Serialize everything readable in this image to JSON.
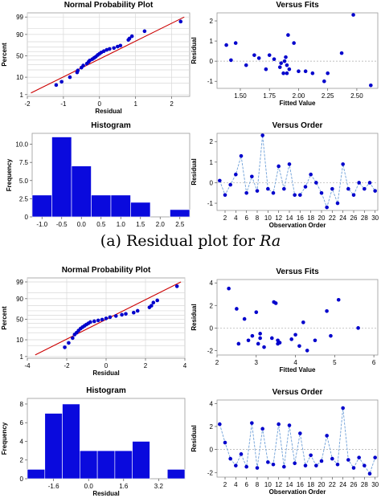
{
  "captions": {
    "ra_prefix": "(a)  Residual plot for ",
    "ra_var": "Ra"
  },
  "styles": {
    "marker": "#0000cc",
    "fit_line": "#cc0000",
    "order_line": "#6fa0d8",
    "bar_fill": "#0a0add",
    "grid": "#d9d9d9",
    "frame": "#9a9a9a",
    "bg": "#ffffff"
  },
  "chart_data": [
    {
      "id": "a-npp",
      "type": "scatter",
      "title": "Normal Probability Plot",
      "xlabel": "Residual",
      "ylabel": "Percent",
      "xlim": [
        -2,
        2.5
      ],
      "xticks": [
        -2,
        -1,
        0,
        1,
        2
      ],
      "yticks": [
        1,
        10,
        50,
        90,
        99
      ],
      "y_scale": "probability",
      "grid": true,
      "fit_line": {
        "x": [
          -1.9,
          2.35
        ],
        "y": [
          1.3,
          99
        ]
      },
      "x": [
        -1.2,
        -1.05,
        -0.82,
        -0.62,
        -0.6,
        -0.5,
        -0.45,
        -0.35,
        -0.3,
        -0.27,
        -0.2,
        -0.15,
        -0.1,
        -0.05,
        0.0,
        0.05,
        0.12,
        0.2,
        0.28,
        0.4,
        0.5,
        0.58,
        0.8,
        0.83,
        0.9,
        1.25,
        2.25
      ],
      "y": [
        4,
        6,
        10,
        16,
        19,
        24,
        28,
        32,
        36,
        39,
        42,
        45,
        48,
        52,
        55,
        58,
        61,
        64,
        66,
        68,
        71,
        73,
        83,
        85,
        88,
        93,
        98
      ]
    },
    {
      "id": "a-fits",
      "type": "scatter",
      "title": "Versus Fits",
      "xlabel": "Fitted Value",
      "ylabel": "Residual",
      "xlim": [
        1.3,
        2.68
      ],
      "ylim": [
        -1.35,
        2.4
      ],
      "xticks": [
        1.5,
        1.75,
        2.0,
        2.25,
        2.5
      ],
      "xtick_labels": [
        "1.50",
        "1.75",
        "2.00",
        "2.25",
        "2.50"
      ],
      "yticks": [
        -1,
        0,
        1,
        2
      ],
      "zero_line": true,
      "x": [
        1.38,
        1.42,
        1.46,
        1.55,
        1.62,
        1.66,
        1.72,
        1.75,
        1.79,
        1.84,
        1.85,
        1.87,
        1.88,
        1.89,
        1.9,
        1.9,
        1.91,
        1.92,
        1.96,
        2.0,
        2.06,
        2.12,
        2.22,
        2.25,
        2.37,
        2.47,
        2.62
      ],
      "y": [
        0.8,
        0.05,
        0.9,
        -0.2,
        0.3,
        0.15,
        -0.4,
        0.3,
        0.1,
        -0.3,
        -0.1,
        -0.6,
        0.0,
        0.2,
        -0.2,
        -0.6,
        1.3,
        -0.4,
        0.9,
        -0.5,
        -0.5,
        -0.6,
        -1.0,
        -0.6,
        0.4,
        2.3,
        -1.2
      ]
    },
    {
      "id": "a-hist",
      "type": "bar",
      "title": "Histogram",
      "xlabel": "",
      "ylabel": "Frequency",
      "bin_edges": [
        -1.25,
        -0.75,
        -0.25,
        0.25,
        0.75,
        1.25,
        1.75,
        2.25,
        2.75
      ],
      "values": [
        3,
        11,
        7,
        3,
        3,
        2,
        0,
        1
      ],
      "xticks": [
        -1.0,
        -0.5,
        0.0,
        0.5,
        1.0,
        1.5,
        2.0,
        2.5
      ],
      "xtick_labels": [
        "-1.0",
        "-0.5",
        "0.0",
        "0.5",
        "1.0",
        "1.5",
        "2.0",
        "2.5"
      ],
      "yticks": [
        0,
        2.5,
        5.0,
        7.5,
        10.0
      ],
      "ytick_labels": [
        "0",
        "2.5",
        "5.0",
        "7.5",
        "10.0"
      ],
      "ylim": [
        0,
        11.5
      ]
    },
    {
      "id": "a-order",
      "type": "line",
      "title": "Versus Order",
      "xlabel": "Observation Order",
      "ylabel": "Residual",
      "xlim": [
        0.5,
        30.5
      ],
      "ylim": [
        -1.35,
        2.4
      ],
      "xticks": [
        2,
        4,
        6,
        8,
        10,
        12,
        14,
        16,
        18,
        20,
        22,
        24,
        26,
        28,
        30
      ],
      "yticks": [
        -1,
        0,
        1,
        2
      ],
      "zero_line": true,
      "x": [
        1,
        2,
        3,
        4,
        5,
        6,
        7,
        8,
        9,
        10,
        11,
        12,
        13,
        14,
        15,
        16,
        17,
        18,
        19,
        20,
        21,
        22,
        23,
        24,
        25,
        26,
        27,
        28,
        29,
        30
      ],
      "y": [
        0.1,
        -0.6,
        -0.1,
        0.4,
        1.3,
        -0.5,
        0.3,
        -0.4,
        2.3,
        -0.3,
        -0.5,
        0.8,
        -0.3,
        0.9,
        -0.6,
        -0.6,
        -0.2,
        0.4,
        0.0,
        -0.5,
        -1.2,
        -0.3,
        -1.0,
        0.9,
        -0.3,
        -0.6,
        0.0,
        -0.3,
        0.0,
        -0.4
      ]
    },
    {
      "id": "b-npp",
      "type": "scatter",
      "title": "Normal Probability Plot",
      "xlabel": "Residual",
      "ylabel": "Percent",
      "xlim": [
        -4,
        4
      ],
      "xticks": [
        -4,
        -2,
        0,
        2,
        4
      ],
      "yticks": [
        1,
        10,
        50,
        90,
        99
      ],
      "y_scale": "probability",
      "grid": true,
      "fit_line": {
        "x": [
          -3.6,
          3.8
        ],
        "y": [
          1.3,
          99
        ]
      },
      "x": [
        -2.1,
        -1.9,
        -1.7,
        -1.6,
        -1.5,
        -1.4,
        -1.3,
        -1.2,
        -1.1,
        -1.0,
        -0.9,
        -0.8,
        -0.6,
        -0.4,
        -0.2,
        0.0,
        0.2,
        0.5,
        0.8,
        1.0,
        1.4,
        1.6,
        2.2,
        2.3,
        2.4,
        2.6,
        3.6
      ],
      "y": [
        4,
        7,
        12,
        17,
        20,
        24,
        28,
        31,
        34,
        37,
        40,
        43,
        45,
        47,
        49,
        52,
        55,
        58,
        61,
        63,
        66,
        70,
        77,
        80,
        85,
        88,
        98
      ]
    },
    {
      "id": "b-fits",
      "type": "scatter",
      "title": "Versus Fits",
      "xlabel": "Fitted Value",
      "ylabel": "Residual",
      "xlim": [
        2,
        6.1
      ],
      "ylim": [
        -2.4,
        4.3
      ],
      "xticks": [
        2,
        3,
        4,
        5,
        6
      ],
      "yticks": [
        -2,
        0,
        2,
        4
      ],
      "zero_line": true,
      "x": [
        2.3,
        2.5,
        2.55,
        2.7,
        2.8,
        2.9,
        3.0,
        3.05,
        3.1,
        3.1,
        3.2,
        3.4,
        3.45,
        3.5,
        3.55,
        3.55,
        3.6,
        3.9,
        4.0,
        4.1,
        4.2,
        4.3,
        4.5,
        4.8,
        4.9,
        5.1,
        5.6
      ],
      "y": [
        3.5,
        1.7,
        -1.4,
        0.8,
        -1.1,
        -0.7,
        1.4,
        -1.4,
        -0.9,
        -0.5,
        -1.7,
        -0.9,
        2.3,
        2.2,
        -1.4,
        -1.1,
        -1.3,
        -1.0,
        -0.6,
        -1.6,
        0.5,
        -2.0,
        -1.1,
        1.5,
        -0.7,
        2.5,
        0.0
      ]
    },
    {
      "id": "b-hist",
      "type": "bar",
      "title": "Histogram",
      "xlabel": "Residual",
      "ylabel": "Frequency",
      "bin_edges": [
        -2.8,
        -2.0,
        -1.2,
        -0.4,
        0.4,
        1.2,
        2.0,
        2.8,
        3.6,
        4.4
      ],
      "values": [
        1,
        7,
        8,
        3,
        3,
        3,
        4,
        0,
        1
      ],
      "xticks": [
        -1.6,
        0.0,
        1.6,
        3.2
      ],
      "xtick_labels": [
        "-1.6",
        "0.0",
        "1.6",
        "3.2"
      ],
      "yticks": [
        0,
        2,
        4,
        6,
        8
      ],
      "ylim": [
        0,
        8.6
      ]
    },
    {
      "id": "b-order",
      "type": "line",
      "title": "Versus Order",
      "xlabel": "Observation Order",
      "ylabel": "Residual",
      "xlim": [
        0.5,
        30.5
      ],
      "ylim": [
        -2.4,
        4.3
      ],
      "xticks": [
        2,
        4,
        6,
        8,
        10,
        12,
        14,
        16,
        18,
        20,
        22,
        24,
        26,
        28,
        30
      ],
      "yticks": [
        -2,
        0,
        2,
        4
      ],
      "zero_line": true,
      "x": [
        1,
        2,
        3,
        4,
        5,
        6,
        7,
        8,
        9,
        10,
        11,
        12,
        13,
        14,
        15,
        16,
        17,
        18,
        19,
        20,
        21,
        22,
        23,
        24,
        25,
        26,
        27,
        28,
        29,
        30
      ],
      "y": [
        2.2,
        0.6,
        -0.8,
        -1.4,
        -0.4,
        -1.5,
        2.3,
        -1.6,
        1.8,
        -1.1,
        -1.3,
        2.2,
        -1.5,
        2.1,
        -1.2,
        1.4,
        -1.4,
        -0.5,
        -1.4,
        -1.0,
        1.2,
        -0.8,
        -1.3,
        3.6,
        -0.9,
        -1.6,
        -0.7,
        -1.4,
        -2.1,
        -0.7
      ]
    }
  ]
}
